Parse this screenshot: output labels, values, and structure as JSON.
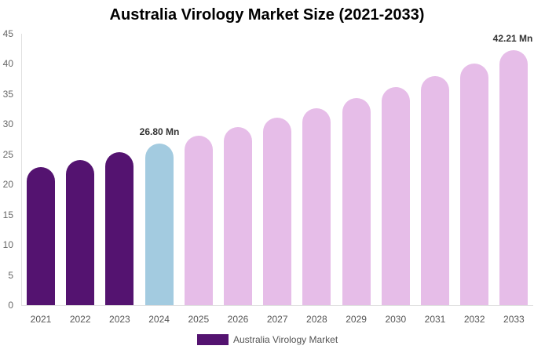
{
  "title": "Australia Virology Market Size (2021-2033)",
  "legend": {
    "label": "Australia Virology Market",
    "color": "#541370"
  },
  "y_ticks": [
    "0",
    "5",
    "10",
    "15",
    "20",
    "25",
    "30",
    "35",
    "40",
    "45"
  ],
  "data_labels": {
    "y2024": "26.80 Mn",
    "y2033": "42.21 Mn"
  },
  "colors": {
    "historical": "#541370",
    "base_year": "#a3cbe0",
    "forecast": "#e6bde8"
  },
  "chart_data": {
    "type": "bar",
    "title": "Australia Virology Market Size (2021-2033)",
    "xlabel": "",
    "ylabel": "",
    "ylim": [
      0,
      45
    ],
    "grid": false,
    "legend_position": "bottom",
    "categories": [
      "2021",
      "2022",
      "2023",
      "2024",
      "2025",
      "2026",
      "2027",
      "2028",
      "2029",
      "2030",
      "2031",
      "2032",
      "2033"
    ],
    "series": [
      {
        "name": "Australia Virology Market",
        "values": [
          22.9,
          24.1,
          25.4,
          26.8,
          28.1,
          29.5,
          31.1,
          32.7,
          34.3,
          36.1,
          38.0,
          40.0,
          42.21
        ]
      }
    ],
    "annotations": [
      {
        "x": "2024",
        "text": "26.80 Mn"
      },
      {
        "x": "2033",
        "text": "42.21 Mn"
      }
    ],
    "bar_colors": [
      "#541370",
      "#541370",
      "#541370",
      "#a3cbe0",
      "#e6bde8",
      "#e6bde8",
      "#e6bde8",
      "#e6bde8",
      "#e6bde8",
      "#e6bde8",
      "#e6bde8",
      "#e6bde8",
      "#e6bde8"
    ]
  }
}
